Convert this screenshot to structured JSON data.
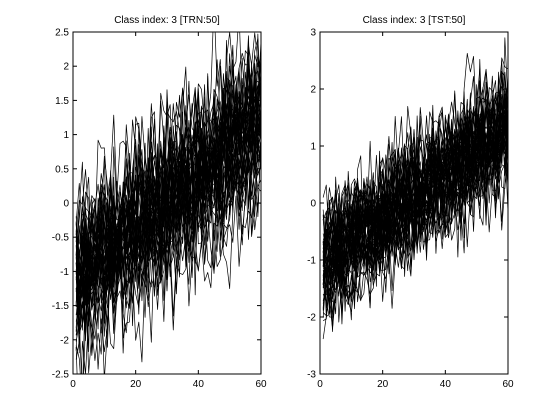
{
  "colors": {
    "background": "#ffffff",
    "series": "#000000",
    "axes": "#000000"
  },
  "chart_data": [
    {
      "type": "line",
      "title": "Class index: 3 [TRN:50]",
      "xlabel": "",
      "ylabel": "",
      "xlim": [
        0,
        60
      ],
      "ylim": [
        -2.5,
        2.5
      ],
      "xticks": [
        0,
        20,
        40,
        60
      ],
      "xtick_labels": [
        "0",
        "20",
        "40",
        "60"
      ],
      "yticks": [
        -2.5,
        -2,
        -1.5,
        -1,
        -0.5,
        0,
        0.5,
        1,
        1.5,
        2,
        2.5
      ],
      "ytick_labels": [
        "-2.5",
        "-2",
        "-1.5",
        "-1",
        "-0.5",
        "0",
        "0.5",
        "1",
        "1.5",
        "2",
        "2.5"
      ],
      "grid": false,
      "legend": "none",
      "series_count": 50,
      "points_per_series": 60,
      "trend": {
        "start": -1.0,
        "end": 1.2
      },
      "noise_std": 0.45,
      "seed": 7
    },
    {
      "type": "line",
      "title": "Class index: 3 [TST:50]",
      "xlabel": "",
      "ylabel": "",
      "xlim": [
        0,
        60
      ],
      "ylim": [
        -3,
        3
      ],
      "xticks": [
        0,
        20,
        40,
        60
      ],
      "xtick_labels": [
        "0",
        "20",
        "40",
        "60"
      ],
      "yticks": [
        -3,
        -2,
        -1,
        0,
        1,
        2,
        3
      ],
      "ytick_labels": [
        "-3",
        "-2",
        "-1",
        "0",
        "1",
        "2",
        "3"
      ],
      "grid": false,
      "legend": "none",
      "series_count": 50,
      "points_per_series": 60,
      "trend": {
        "start": -1.0,
        "end": 1.35
      },
      "noise_std": 0.45,
      "seed": 19
    }
  ]
}
